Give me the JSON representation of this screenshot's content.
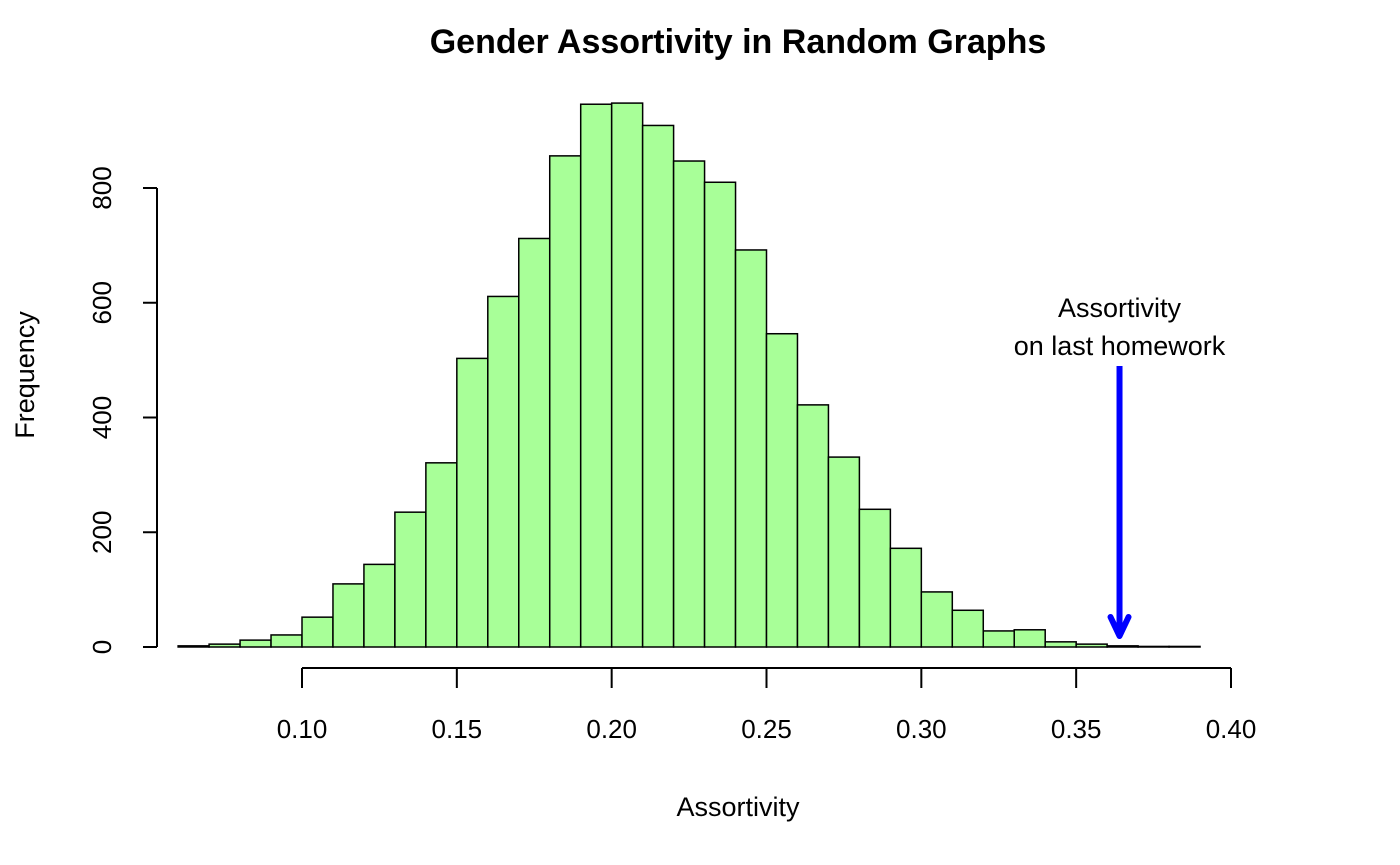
{
  "chart_data": {
    "type": "bar",
    "title": "Gender Assortivity in Random Graphs",
    "xlabel": "Assortivity",
    "ylabel": "Frequency",
    "bin_width": 0.01,
    "bin_starts": [
      0.06,
      0.07,
      0.08,
      0.09,
      0.1,
      0.11,
      0.12,
      0.13,
      0.14,
      0.15,
      0.16,
      0.17,
      0.18,
      0.19,
      0.2,
      0.21,
      0.22,
      0.23,
      0.24,
      0.25,
      0.26,
      0.27,
      0.28,
      0.29,
      0.3,
      0.31,
      0.32,
      0.33,
      0.34,
      0.35,
      0.36,
      0.37,
      0.38
    ],
    "values": [
      2,
      5,
      12,
      21,
      52,
      110,
      144,
      235,
      321,
      503,
      611,
      712,
      856,
      946,
      948,
      909,
      847,
      810,
      692,
      546,
      422,
      331,
      240,
      172,
      96,
      64,
      28,
      30,
      9,
      5,
      2,
      1,
      1
    ],
    "xlim": [
      0.1,
      0.4
    ],
    "ylim": [
      0,
      800
    ],
    "x_ticks": [
      "0.10",
      "0.15",
      "0.20",
      "0.25",
      "0.30",
      "0.35",
      "0.40"
    ],
    "y_ticks": [
      "0",
      "200",
      "400",
      "600",
      "800"
    ],
    "bar_color": "#A8FF98",
    "annotation": {
      "lines": [
        "Assortivity",
        "on last homework"
      ],
      "x": 0.364,
      "color": "#0000FF"
    }
  }
}
